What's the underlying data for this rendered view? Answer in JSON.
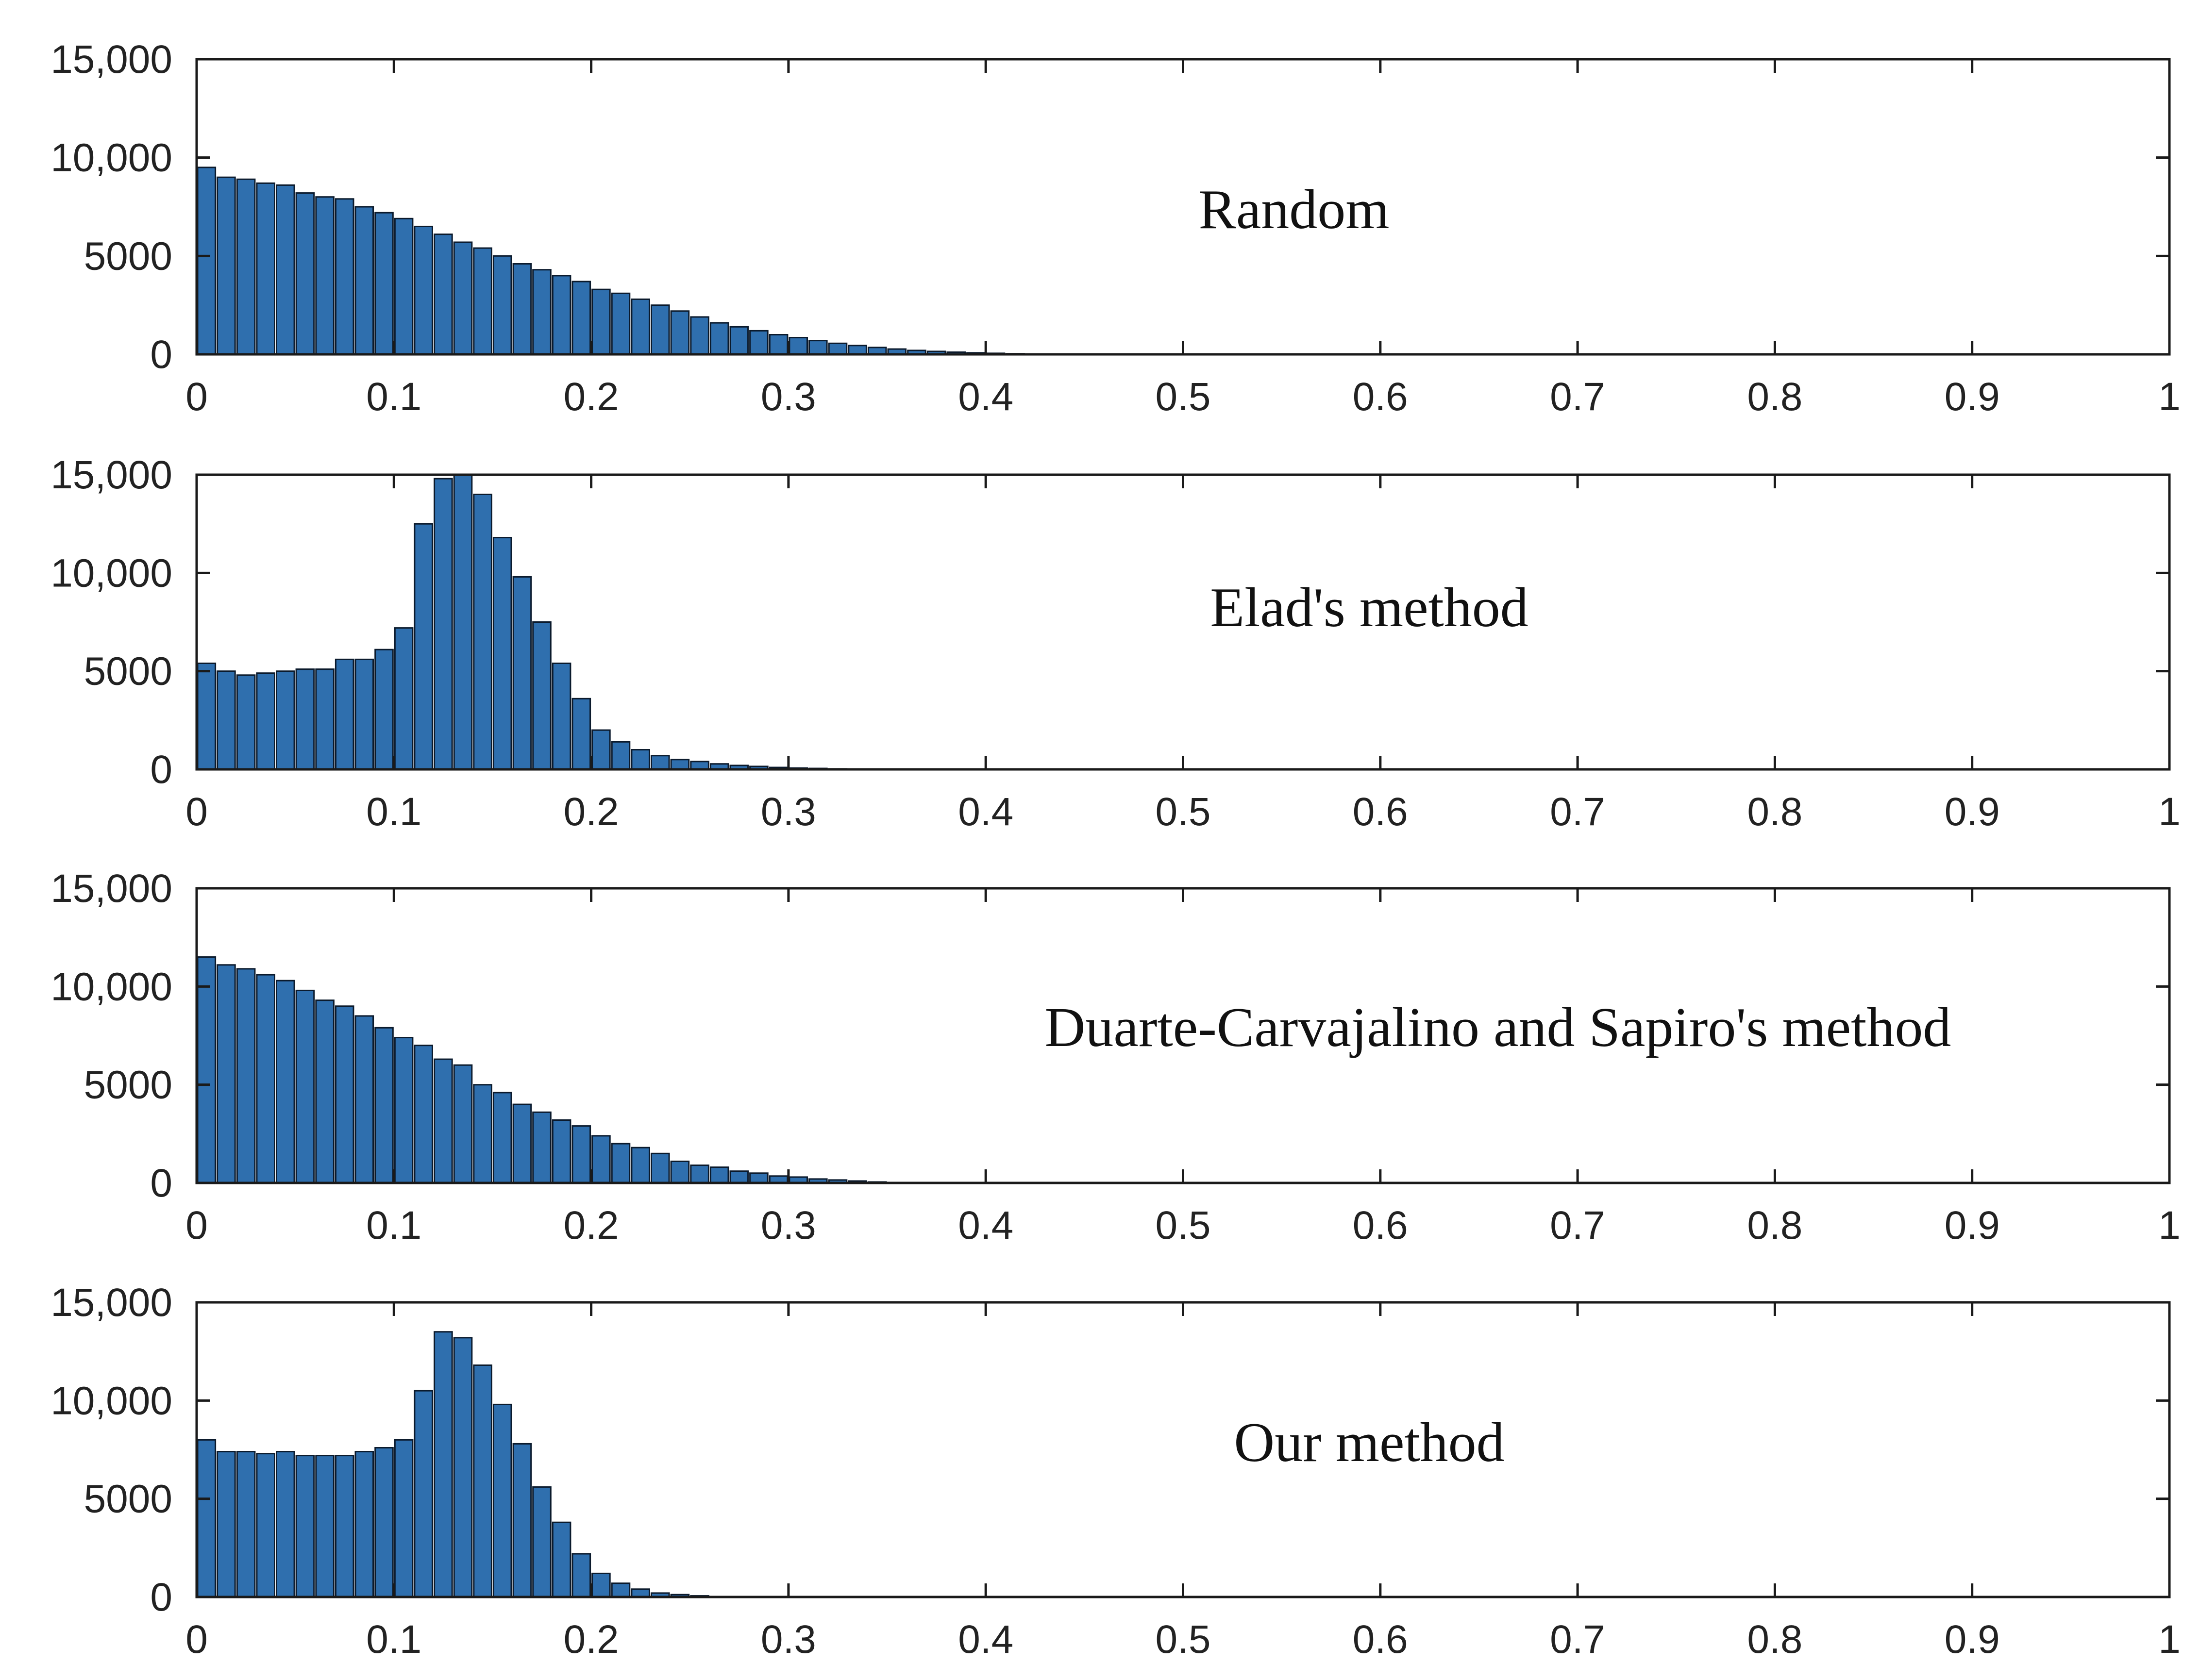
{
  "figure": {
    "background": "#ffffff",
    "bar_color": "#2f6fae",
    "bar_edge_color": "#0b1a2c"
  },
  "chart_data": [
    {
      "type": "bar",
      "title": "Random",
      "xlabel": "",
      "ylabel": "",
      "xlim": [
        0,
        1
      ],
      "ylim": [
        0,
        15000
      ],
      "x_ticks": [
        "0",
        "0.1",
        "0.2",
        "0.3",
        "0.4",
        "0.5",
        "0.6",
        "0.7",
        "0.8",
        "0.9",
        "1"
      ],
      "y_ticks": [
        "0",
        "5000",
        "10,000",
        "15,000"
      ],
      "bin_width": 0.01,
      "x": [
        0.005,
        0.015,
        0.025,
        0.035,
        0.045,
        0.055,
        0.065,
        0.075,
        0.085,
        0.095,
        0.105,
        0.115,
        0.125,
        0.135,
        0.145,
        0.155,
        0.165,
        0.175,
        0.185,
        0.195,
        0.205,
        0.215,
        0.225,
        0.235,
        0.245,
        0.255,
        0.265,
        0.275,
        0.285,
        0.295,
        0.305,
        0.315,
        0.325,
        0.335,
        0.345,
        0.355,
        0.365,
        0.375,
        0.385,
        0.395,
        0.405,
        0.415,
        0.425,
        0.435
      ],
      "values": [
        9500,
        9000,
        8900,
        8700,
        8600,
        8200,
        8000,
        7900,
        7500,
        7200,
        6900,
        6500,
        6100,
        5700,
        5400,
        5000,
        4600,
        4300,
        4000,
        3700,
        3300,
        3100,
        2800,
        2500,
        2200,
        1900,
        1600,
        1400,
        1200,
        1000,
        850,
        700,
        560,
        450,
        350,
        270,
        200,
        150,
        110,
        80,
        55,
        35,
        20,
        10
      ]
    },
    {
      "type": "bar",
      "title": "Elad's method",
      "xlabel": "",
      "ylabel": "",
      "xlim": [
        0,
        1
      ],
      "ylim": [
        0,
        15000
      ],
      "x_ticks": [
        "0",
        "0.1",
        "0.2",
        "0.3",
        "0.4",
        "0.5",
        "0.6",
        "0.7",
        "0.8",
        "0.9",
        "1"
      ],
      "y_ticks": [
        "0",
        "5000",
        "10,000",
        "15,000"
      ],
      "bin_width": 0.01,
      "x": [
        0.005,
        0.015,
        0.025,
        0.035,
        0.045,
        0.055,
        0.065,
        0.075,
        0.085,
        0.095,
        0.105,
        0.115,
        0.125,
        0.135,
        0.145,
        0.155,
        0.165,
        0.175,
        0.185,
        0.195,
        0.205,
        0.215,
        0.225,
        0.235,
        0.245,
        0.255,
        0.265,
        0.275,
        0.285,
        0.295,
        0.305,
        0.315,
        0.325,
        0.335,
        0.345,
        0.355
      ],
      "values": [
        5400,
        5000,
        4800,
        4900,
        5000,
        5100,
        5100,
        5600,
        5600,
        6100,
        7200,
        12500,
        14800,
        15000,
        14000,
        11800,
        9800,
        7500,
        5400,
        3600,
        2000,
        1400,
        1000,
        700,
        500,
        400,
        280,
        200,
        150,
        100,
        70,
        50,
        30,
        20,
        10,
        5
      ]
    },
    {
      "type": "bar",
      "title": "Duarte-Carvajalino and Sapiro's method",
      "xlabel": "",
      "ylabel": "",
      "xlim": [
        0,
        1
      ],
      "ylim": [
        0,
        15000
      ],
      "x_ticks": [
        "0",
        "0.1",
        "0.2",
        "0.3",
        "0.4",
        "0.5",
        "0.6",
        "0.7",
        "0.8",
        "0.9",
        "1"
      ],
      "y_ticks": [
        "0",
        "5000",
        "10,000",
        "15,000"
      ],
      "bin_width": 0.01,
      "x": [
        0.005,
        0.015,
        0.025,
        0.035,
        0.045,
        0.055,
        0.065,
        0.075,
        0.085,
        0.095,
        0.105,
        0.115,
        0.125,
        0.135,
        0.145,
        0.155,
        0.165,
        0.175,
        0.185,
        0.195,
        0.205,
        0.215,
        0.225,
        0.235,
        0.245,
        0.255,
        0.265,
        0.275,
        0.285,
        0.295,
        0.305,
        0.315,
        0.325,
        0.335,
        0.345
      ],
      "values": [
        11500,
        11100,
        10900,
        10600,
        10300,
        9800,
        9300,
        9000,
        8500,
        7900,
        7400,
        7000,
        6300,
        6000,
        5000,
        4600,
        4000,
        3600,
        3200,
        2900,
        2400,
        2000,
        1800,
        1500,
        1100,
        900,
        800,
        600,
        500,
        350,
        300,
        200,
        150,
        100,
        50
      ]
    },
    {
      "type": "bar",
      "title": "Our method",
      "xlabel": "",
      "ylabel": "",
      "xlim": [
        0,
        1
      ],
      "ylim": [
        0,
        15000
      ],
      "x_ticks": [
        "0",
        "0.1",
        "0.2",
        "0.3",
        "0.4",
        "0.5",
        "0.6",
        "0.7",
        "0.8",
        "0.9",
        "1"
      ],
      "y_ticks": [
        "0",
        "5000",
        "10,000",
        "15,000"
      ],
      "bin_width": 0.01,
      "x": [
        0.005,
        0.015,
        0.025,
        0.035,
        0.045,
        0.055,
        0.065,
        0.075,
        0.085,
        0.095,
        0.105,
        0.115,
        0.125,
        0.135,
        0.145,
        0.155,
        0.165,
        0.175,
        0.185,
        0.195,
        0.205,
        0.215,
        0.225,
        0.235,
        0.245,
        0.255,
        0.265
      ],
      "values": [
        8000,
        7400,
        7400,
        7300,
        7400,
        7200,
        7200,
        7200,
        7400,
        7600,
        8000,
        10500,
        13500,
        13200,
        11800,
        9800,
        7800,
        5600,
        3800,
        2200,
        1200,
        700,
        400,
        200,
        120,
        60,
        20
      ]
    }
  ]
}
